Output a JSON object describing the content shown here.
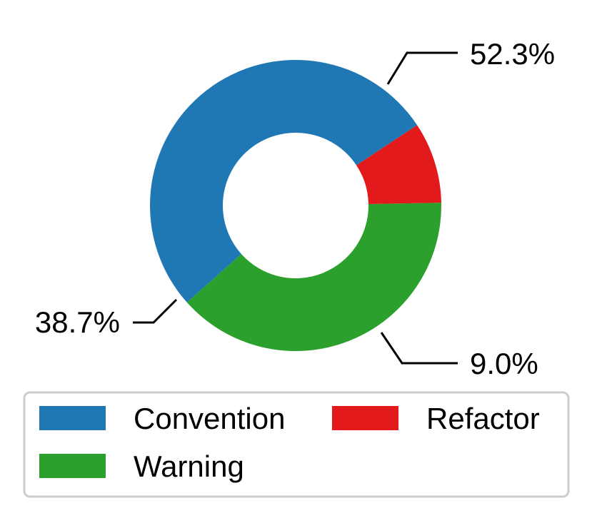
{
  "chart_data": {
    "type": "pie",
    "subtype": "donut",
    "title": "",
    "categories": [
      "Convention",
      "Warning",
      "Refactor"
    ],
    "values": [
      52.3,
      38.7,
      9.0
    ],
    "labels": [
      "52.3%",
      "38.7%",
      "9.0%"
    ],
    "colors": [
      "#1f77b4",
      "#2ca02c",
      "#e31a1c"
    ],
    "legend": {
      "position": "bottom",
      "columns": 2,
      "order": [
        "Convention",
        "Refactor",
        "Warning"
      ]
    }
  }
}
